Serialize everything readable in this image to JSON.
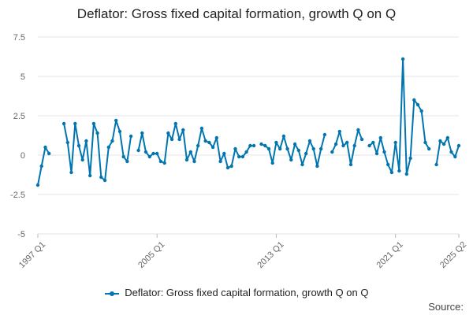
{
  "chart_data": {
    "type": "line",
    "title": "Deflator: Gross fixed capital formation, growth Q on Q",
    "color": "#0075b0",
    "ylim": [
      -5,
      7.5
    ],
    "y_ticks": [
      "7.5",
      "5",
      "2.5",
      "0",
      "-2.5",
      "-5"
    ],
    "y_tick_values": [
      7.5,
      5,
      2.5,
      0,
      -2.5,
      -5
    ],
    "x_ticks": [
      "1997 Q1",
      "2005 Q1",
      "2013 Q1",
      "2021 Q1",
      "2025 Q2"
    ],
    "x_start": "1997 Q1",
    "grid": true,
    "legend_position": "bottom",
    "series": [
      {
        "name": "Deflator: Gross fixed capital formation, growth Q on Q",
        "values": [
          -1.9,
          -0.7,
          0.5,
          0.1,
          null,
          null,
          null,
          2.0,
          0.8,
          -1.1,
          2.0,
          0.6,
          -0.3,
          0.9,
          -1.3,
          2.0,
          1.4,
          -1.4,
          -1.6,
          0.5,
          0.9,
          2.2,
          1.5,
          -0.1,
          -0.4,
          1.2,
          null,
          0.3,
          1.4,
          0.2,
          -0.1,
          0.1,
          0.1,
          -0.4,
          -0.5,
          1.4,
          1.0,
          2.0,
          1.0,
          1.6,
          -0.3,
          0.2,
          -0.4,
          0.6,
          1.7,
          0.9,
          0.8,
          0.5,
          1.1,
          -0.4,
          0.1,
          -0.8,
          -0.7,
          0.4,
          -0.1,
          -0.1,
          0.2,
          0.6,
          0.6,
          null,
          0.7,
          0.6,
          0.4,
          -0.5,
          0.8,
          0.4,
          1.2,
          0.4,
          -0.3,
          0.7,
          0.3,
          -0.6,
          0.1,
          0.9,
          0.4,
          -0.7,
          0.4,
          1.3,
          null,
          0.2,
          0.7,
          1.5,
          0.6,
          0.8,
          -0.6,
          0.6,
          1.6,
          1.0,
          null,
          0.6,
          0.8,
          0.1,
          1.1,
          0.2,
          -0.6,
          -1.1,
          0.8,
          -1.0,
          6.1,
          -1.2,
          -0.2,
          3.5,
          3.2,
          2.8,
          0.8,
          0.4,
          null,
          -0.6,
          0.9,
          0.7,
          1.1,
          0.2,
          -0.1,
          0.6
        ]
      }
    ],
    "legend": [
      "Deflator: Gross fixed capital formation, growth Q on Q"
    ]
  },
  "footer": {
    "source_label": "Source:"
  }
}
